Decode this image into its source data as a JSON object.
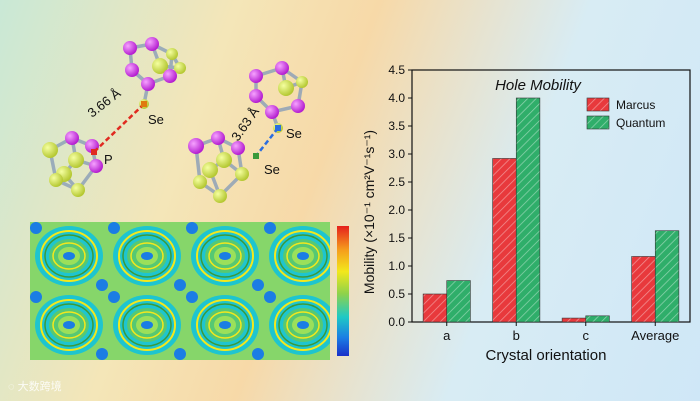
{
  "molecules": {
    "left": {
      "distance": "3.66 Å",
      "atom1": "P",
      "atom2": "Se"
    },
    "right": {
      "distance": "3.63 Å",
      "atom1": "Se",
      "atom2": "Se"
    }
  },
  "watermark": "大数跨境",
  "colors": {
    "marcus": "#e8393c",
    "quantum": "#2fae6a"
  },
  "chart_data": {
    "type": "bar",
    "title": "Hole Mobility",
    "xlabel": "Crystal orientation",
    "ylabel": "Mobility (×10⁻¹ cm²V⁻¹s⁻¹)",
    "categories": [
      "a",
      "b",
      "c",
      "Average"
    ],
    "series": [
      {
        "name": "Marcus",
        "values": [
          0.5,
          2.92,
          0.07,
          1.17
        ]
      },
      {
        "name": "Quantum",
        "values": [
          0.74,
          4.0,
          0.11,
          1.63
        ]
      }
    ],
    "ylim": [
      0,
      4.5
    ],
    "yticks": [
      "0.0",
      "0.5",
      "1.0",
      "1.5",
      "2.0",
      "2.5",
      "3.0",
      "3.5",
      "4.0",
      "4.5"
    ],
    "legend_position": "top-right"
  }
}
